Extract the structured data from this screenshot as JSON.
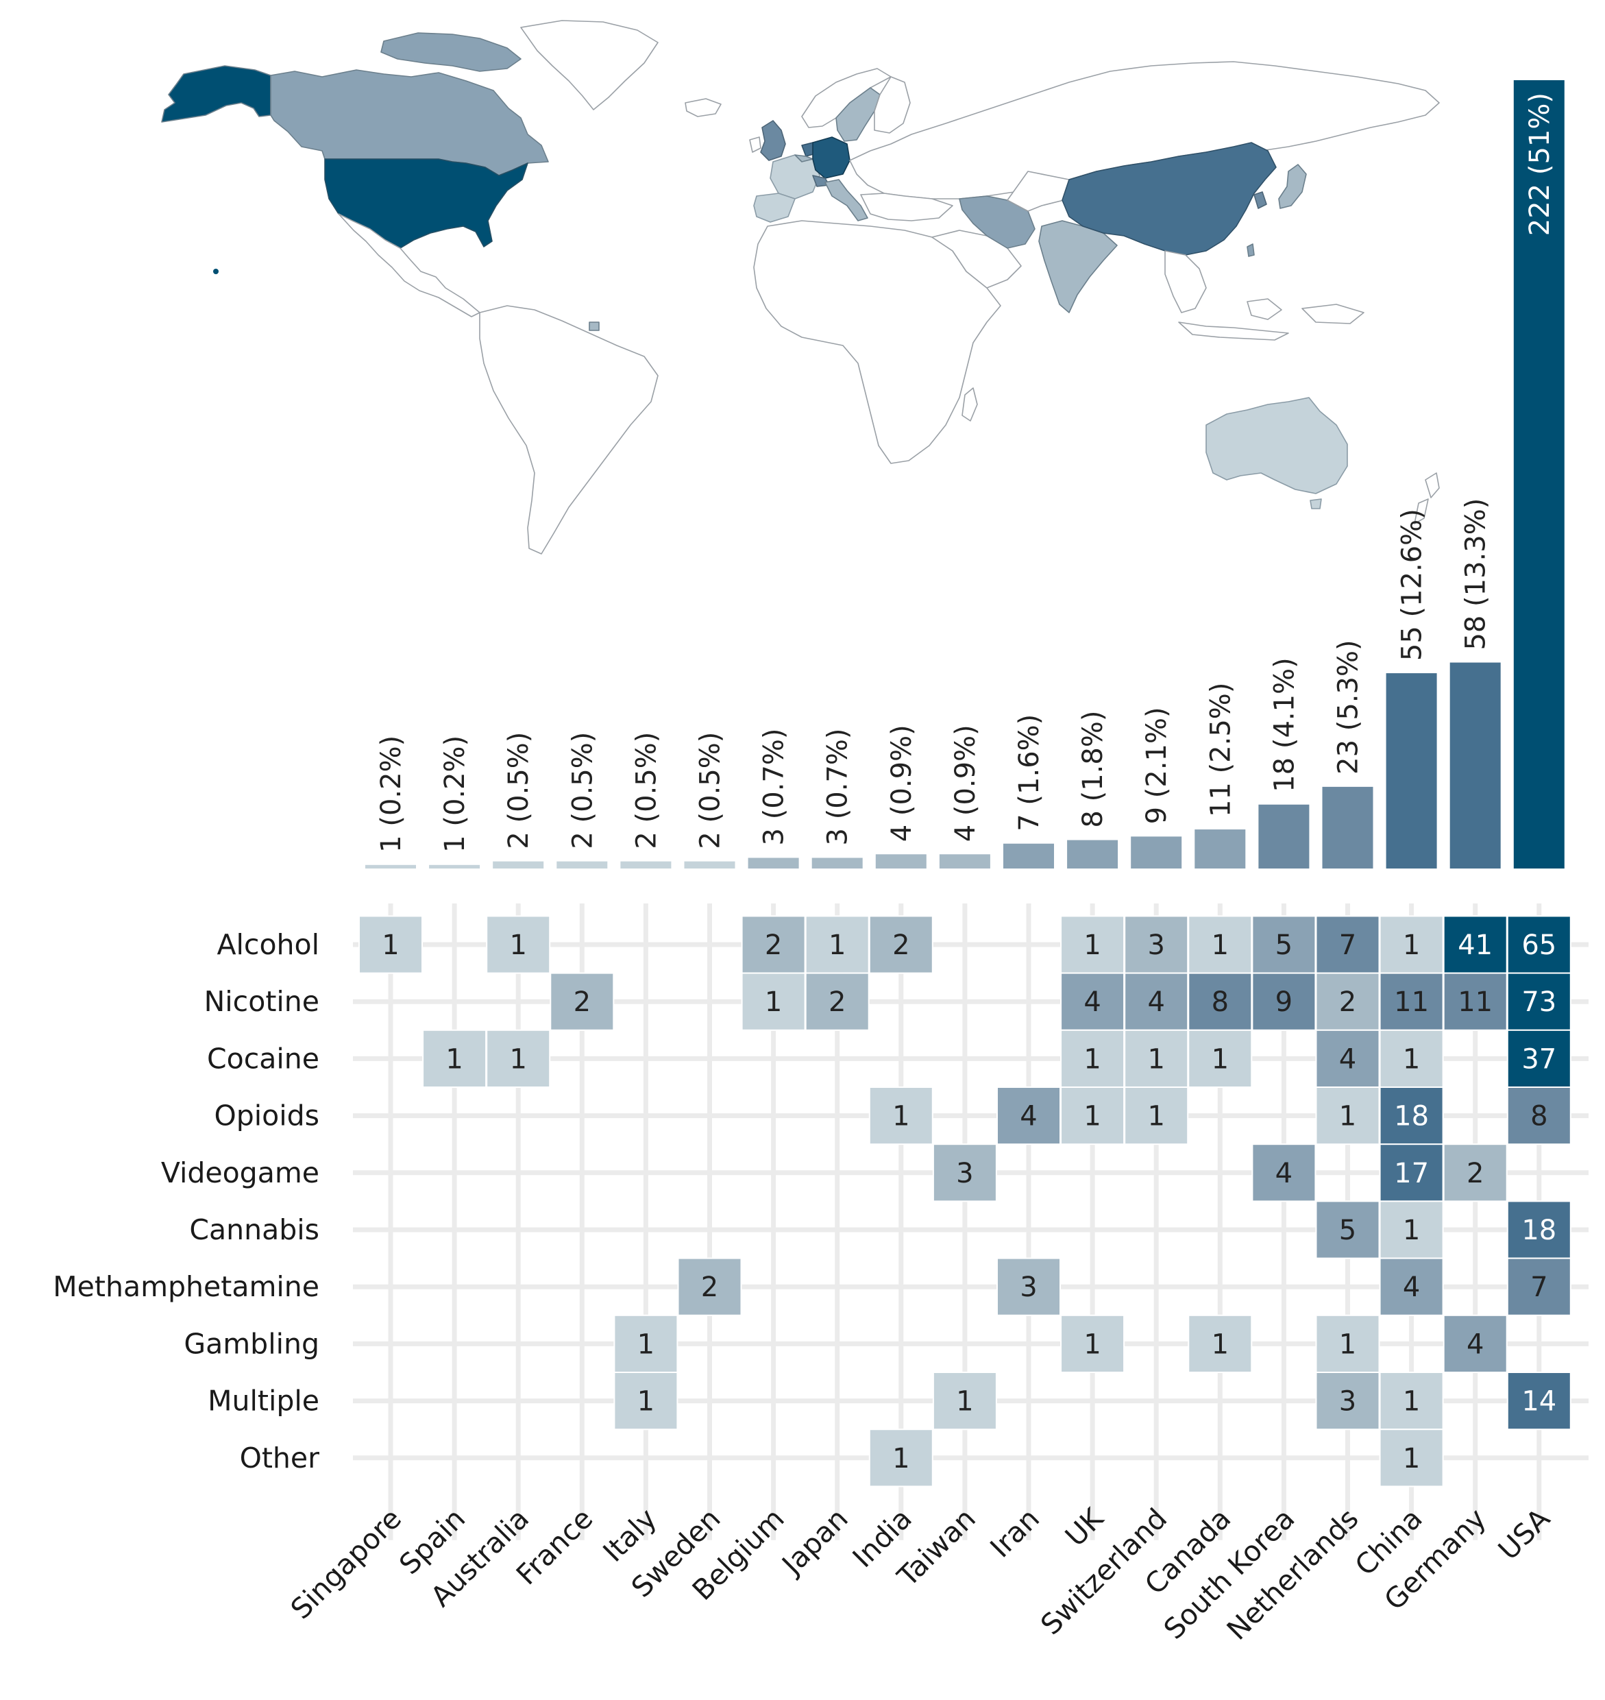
{
  "colors": {
    "background": "#ffffff",
    "grid": "#ebebeb",
    "cell_border": "#ffffff",
    "scale": [
      "#c5d3da",
      "#a6b9c5",
      "#8aa2b4",
      "#6b89a1",
      "#46708f",
      "#004f72"
    ],
    "map_land": "#ffffff",
    "map_border": "#9aa0a6"
  },
  "map": {
    "icon": "world-choropleth-map",
    "highlighted_countries": [
      {
        "name": "USA",
        "count": 222
      },
      {
        "name": "Germany",
        "count": 58
      },
      {
        "name": "China",
        "count": 55
      },
      {
        "name": "Netherlands",
        "count": 23
      },
      {
        "name": "South Korea",
        "count": 18
      },
      {
        "name": "Canada",
        "count": 11
      },
      {
        "name": "Switzerland",
        "count": 9
      },
      {
        "name": "UK",
        "count": 8
      },
      {
        "name": "Iran",
        "count": 7
      },
      {
        "name": "Taiwan",
        "count": 4
      },
      {
        "name": "India",
        "count": 4
      },
      {
        "name": "Japan",
        "count": 3
      },
      {
        "name": "Belgium",
        "count": 3
      },
      {
        "name": "Sweden",
        "count": 2
      },
      {
        "name": "Italy",
        "count": 2
      },
      {
        "name": "France",
        "count": 2
      },
      {
        "name": "Australia",
        "count": 2
      },
      {
        "name": "Spain",
        "count": 1
      },
      {
        "name": "Singapore",
        "count": 1
      }
    ]
  },
  "chart_data": [
    {
      "type": "bar",
      "orientation": "vertical",
      "categories": [
        "Singapore",
        "Spain",
        "Australia",
        "France",
        "Italy",
        "Sweden",
        "Belgium",
        "Japan",
        "India",
        "Taiwan",
        "Iran",
        "UK",
        "Switzerland",
        "Canada",
        "South Korea",
        "Netherlands",
        "China",
        "Germany",
        "USA"
      ],
      "values": [
        1,
        1,
        2,
        2,
        2,
        2,
        3,
        3,
        4,
        4,
        7,
        8,
        9,
        11,
        18,
        23,
        55,
        58,
        222
      ],
      "data_labels": [
        "1 (0.2%)",
        "1 (0.2%)",
        "2 (0.5%)",
        "2 (0.5%)",
        "2 (0.5%)",
        "2 (0.5%)",
        "3 (0.7%)",
        "3 (0.7%)",
        "4 (0.9%)",
        "4 (0.9%)",
        "7 (1.6%)",
        "8 (1.8%)",
        "9 (2.1%)",
        "11 (2.5%)",
        "18 (4.1%)",
        "23 (5.3%)",
        "55 (12.6%)",
        "58 (13.3%)",
        "222 (51%)"
      ],
      "title": "",
      "xlabel": "",
      "ylabel": "",
      "ylim": [
        0,
        222
      ],
      "grid": false
    },
    {
      "type": "heatmap",
      "x_categories": [
        "Singapore",
        "Spain",
        "Australia",
        "France",
        "Italy",
        "Sweden",
        "Belgium",
        "Japan",
        "India",
        "Taiwan",
        "Iran",
        "UK",
        "Switzerland",
        "Canada",
        "South Korea",
        "Netherlands",
        "China",
        "Germany",
        "USA"
      ],
      "y_categories": [
        "Alcohol",
        "Nicotine",
        "Cocaine",
        "Opioids",
        "Videogame",
        "Cannabis",
        "Methamphetamine",
        "Gambling",
        "Multiple",
        "Other"
      ],
      "cells": [
        {
          "row": "Alcohol",
          "col": "Singapore",
          "value": 1
        },
        {
          "row": "Alcohol",
          "col": "Australia",
          "value": 1
        },
        {
          "row": "Alcohol",
          "col": "Belgium",
          "value": 2
        },
        {
          "row": "Alcohol",
          "col": "Japan",
          "value": 1
        },
        {
          "row": "Alcohol",
          "col": "India",
          "value": 2
        },
        {
          "row": "Alcohol",
          "col": "UK",
          "value": 1
        },
        {
          "row": "Alcohol",
          "col": "Switzerland",
          "value": 3
        },
        {
          "row": "Alcohol",
          "col": "Canada",
          "value": 1
        },
        {
          "row": "Alcohol",
          "col": "South Korea",
          "value": 5
        },
        {
          "row": "Alcohol",
          "col": "Netherlands",
          "value": 7
        },
        {
          "row": "Alcohol",
          "col": "China",
          "value": 1
        },
        {
          "row": "Alcohol",
          "col": "Germany",
          "value": 41
        },
        {
          "row": "Alcohol",
          "col": "USA",
          "value": 65
        },
        {
          "row": "Nicotine",
          "col": "France",
          "value": 2
        },
        {
          "row": "Nicotine",
          "col": "Belgium",
          "value": 1
        },
        {
          "row": "Nicotine",
          "col": "Japan",
          "value": 2
        },
        {
          "row": "Nicotine",
          "col": "UK",
          "value": 4
        },
        {
          "row": "Nicotine",
          "col": "Switzerland",
          "value": 4
        },
        {
          "row": "Nicotine",
          "col": "Canada",
          "value": 8
        },
        {
          "row": "Nicotine",
          "col": "South Korea",
          "value": 9
        },
        {
          "row": "Nicotine",
          "col": "Netherlands",
          "value": 2
        },
        {
          "row": "Nicotine",
          "col": "China",
          "value": 11
        },
        {
          "row": "Nicotine",
          "col": "Germany",
          "value": 11
        },
        {
          "row": "Nicotine",
          "col": "USA",
          "value": 73
        },
        {
          "row": "Cocaine",
          "col": "Spain",
          "value": 1
        },
        {
          "row": "Cocaine",
          "col": "Australia",
          "value": 1
        },
        {
          "row": "Cocaine",
          "col": "UK",
          "value": 1
        },
        {
          "row": "Cocaine",
          "col": "Switzerland",
          "value": 1
        },
        {
          "row": "Cocaine",
          "col": "Canada",
          "value": 1
        },
        {
          "row": "Cocaine",
          "col": "Netherlands",
          "value": 4
        },
        {
          "row": "Cocaine",
          "col": "China",
          "value": 1
        },
        {
          "row": "Cocaine",
          "col": "USA",
          "value": 37
        },
        {
          "row": "Opioids",
          "col": "India",
          "value": 1
        },
        {
          "row": "Opioids",
          "col": "Iran",
          "value": 4
        },
        {
          "row": "Opioids",
          "col": "UK",
          "value": 1
        },
        {
          "row": "Opioids",
          "col": "Switzerland",
          "value": 1
        },
        {
          "row": "Opioids",
          "col": "Netherlands",
          "value": 1
        },
        {
          "row": "Opioids",
          "col": "China",
          "value": 18
        },
        {
          "row": "Opioids",
          "col": "USA",
          "value": 8
        },
        {
          "row": "Videogame",
          "col": "Taiwan",
          "value": 3
        },
        {
          "row": "Videogame",
          "col": "South Korea",
          "value": 4
        },
        {
          "row": "Videogame",
          "col": "China",
          "value": 17
        },
        {
          "row": "Videogame",
          "col": "Germany",
          "value": 2
        },
        {
          "row": "Cannabis",
          "col": "Netherlands",
          "value": 5
        },
        {
          "row": "Cannabis",
          "col": "China",
          "value": 1
        },
        {
          "row": "Cannabis",
          "col": "USA",
          "value": 18
        },
        {
          "row": "Methamphetamine",
          "col": "Sweden",
          "value": 2
        },
        {
          "row": "Methamphetamine",
          "col": "Iran",
          "value": 3
        },
        {
          "row": "Methamphetamine",
          "col": "China",
          "value": 4
        },
        {
          "row": "Methamphetamine",
          "col": "USA",
          "value": 7
        },
        {
          "row": "Gambling",
          "col": "Italy",
          "value": 1
        },
        {
          "row": "Gambling",
          "col": "UK",
          "value": 1
        },
        {
          "row": "Gambling",
          "col": "Canada",
          "value": 1
        },
        {
          "row": "Gambling",
          "col": "Netherlands",
          "value": 1
        },
        {
          "row": "Gambling",
          "col": "Germany",
          "value": 4
        },
        {
          "row": "Multiple",
          "col": "Italy",
          "value": 1
        },
        {
          "row": "Multiple",
          "col": "Taiwan",
          "value": 1
        },
        {
          "row": "Multiple",
          "col": "Netherlands",
          "value": 3
        },
        {
          "row": "Multiple",
          "col": "China",
          "value": 1
        },
        {
          "row": "Multiple",
          "col": "USA",
          "value": 14
        },
        {
          "row": "Other",
          "col": "India",
          "value": 1
        },
        {
          "row": "Other",
          "col": "China",
          "value": 1
        }
      ],
      "title": "",
      "xlabel": "",
      "ylabel": "",
      "grid": true
    }
  ]
}
